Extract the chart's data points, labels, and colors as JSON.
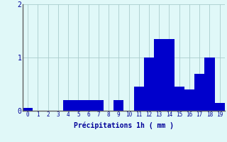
{
  "categories": [
    0,
    1,
    2,
    3,
    4,
    5,
    6,
    7,
    8,
    9,
    10,
    11,
    12,
    13,
    14,
    15,
    16,
    17,
    18,
    19
  ],
  "values": [
    0.05,
    0,
    0,
    0,
    0.2,
    0.2,
    0.2,
    0.2,
    0,
    0.2,
    0,
    0.45,
    1.0,
    1.35,
    1.35,
    0.45,
    0.4,
    0.7,
    1.0,
    0.15
  ],
  "bar_color": "#0000cc",
  "background_color": "#e0f8f8",
  "grid_color": "#aacccc",
  "text_color": "#000099",
  "xlabel": "Précipitations 1h ( mm )",
  "ylim": [
    0,
    2.0
  ],
  "yticks": [
    0,
    1,
    2
  ],
  "bar_width": 1.0
}
